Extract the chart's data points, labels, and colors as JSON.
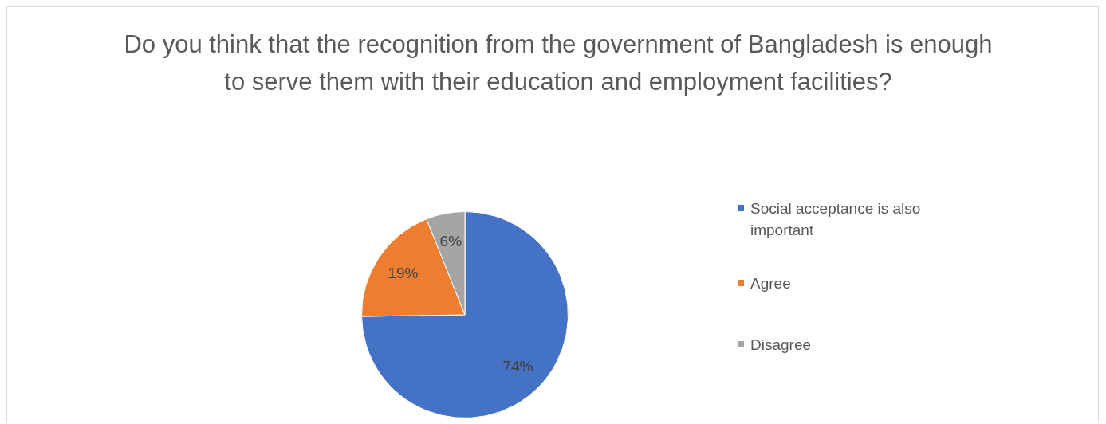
{
  "chart_data": {
    "type": "pie",
    "title": "Do you think that the recognition from the government of Bangladesh is enough to serve them with their education and employment facilities?",
    "categories": [
      "Social acceptance is also important",
      "Agree",
      "Disagree"
    ],
    "values": [
      74,
      19,
      6
    ],
    "colors": [
      "#4472c4",
      "#ed7d31",
      "#a5a5a5"
    ],
    "value_labels": [
      "74%",
      "19%",
      "6%"
    ],
    "legend": "right"
  }
}
